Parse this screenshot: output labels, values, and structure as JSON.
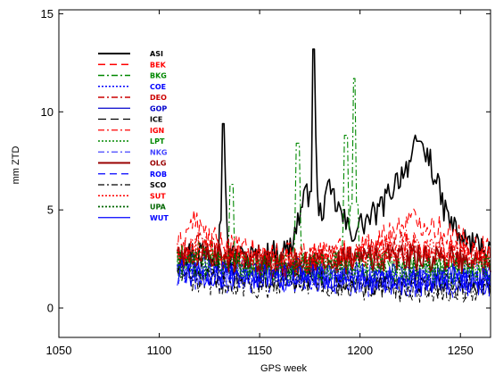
{
  "chart_data": {
    "type": "line",
    "xlabel": "GPS week",
    "ylabel": "mm ZTD",
    "xlim": [
      1050,
      1265
    ],
    "ylim": [
      -1.5,
      15.2
    ],
    "xticks": [
      1050,
      1100,
      1150,
      1200,
      1250
    ],
    "yticks": [
      0,
      5,
      10,
      15
    ],
    "legend_position": "top-left",
    "grid": false,
    "x_start": 1109,
    "x_end": 1265,
    "series": [
      {
        "name": "ASI",
        "color": "#000000",
        "dash": "",
        "width": 1.6,
        "anchors": [
          [
            1109,
            2.5
          ],
          [
            1120,
            3.0
          ],
          [
            1130,
            2.6
          ],
          [
            1132,
            9.4
          ],
          [
            1134,
            2.6
          ],
          [
            1150,
            2.6
          ],
          [
            1165,
            3.0
          ],
          [
            1172,
            5.5
          ],
          [
            1176,
            6.0
          ],
          [
            1177,
            13.2
          ],
          [
            1179,
            4.5
          ],
          [
            1185,
            6.0
          ],
          [
            1195,
            3.8
          ],
          [
            1210,
            5.0
          ],
          [
            1218,
            6.5
          ],
          [
            1225,
            7.5
          ],
          [
            1229,
            8.5
          ],
          [
            1235,
            7.5
          ],
          [
            1242,
            5.0
          ],
          [
            1250,
            3.5
          ],
          [
            1265,
            3.0
          ]
        ],
        "spikes": [
          [
            1132,
            9.4
          ],
          [
            1177,
            13.2
          ],
          [
            1229,
            8.5
          ]
        ]
      },
      {
        "name": "BEK",
        "color": "#ff0000",
        "dash": "8,5",
        "width": 1.1,
        "anchors": [
          [
            1109,
            3.0
          ],
          [
            1117,
            4.5
          ],
          [
            1125,
            3.5
          ],
          [
            1140,
            3.0
          ],
          [
            1160,
            2.6
          ],
          [
            1180,
            2.8
          ],
          [
            1200,
            3.0
          ],
          [
            1215,
            3.8
          ],
          [
            1225,
            4.5
          ],
          [
            1235,
            4.3
          ],
          [
            1250,
            3.5
          ],
          [
            1265,
            3.0
          ]
        ],
        "spikes": []
      },
      {
        "name": "BKG",
        "color": "#008800",
        "dash": "7,3,2,3",
        "width": 1.1,
        "anchors": [
          [
            1109,
            2.5
          ],
          [
            1125,
            2.8
          ],
          [
            1135,
            2.3
          ],
          [
            1150,
            2.0
          ],
          [
            1165,
            2.3
          ],
          [
            1180,
            2.0
          ],
          [
            1195,
            2.5
          ],
          [
            1210,
            2.3
          ],
          [
            1230,
            2.2
          ],
          [
            1250,
            2.2
          ],
          [
            1265,
            2.0
          ]
        ],
        "spikes": [
          [
            1136,
            6.3
          ],
          [
            1169,
            8.4
          ],
          [
            1193,
            8.8
          ],
          [
            1197,
            11.7
          ]
        ]
      },
      {
        "name": "COE",
        "color": "#0000ff",
        "dash": "2,2",
        "width": 1.1,
        "anchors": [
          [
            1109,
            2.0
          ],
          [
            1130,
            1.8
          ],
          [
            1150,
            1.6
          ],
          [
            1170,
            1.6
          ],
          [
            1190,
            1.7
          ],
          [
            1210,
            1.5
          ],
          [
            1230,
            1.4
          ],
          [
            1250,
            1.5
          ],
          [
            1265,
            1.6
          ]
        ],
        "spikes": []
      },
      {
        "name": "DEO",
        "color": "#cc0000",
        "dash": "7,3,2,3",
        "width": 1.1,
        "anchors": [
          [
            1109,
            2.6
          ],
          [
            1120,
            3.2
          ],
          [
            1140,
            2.5
          ],
          [
            1160,
            2.3
          ],
          [
            1180,
            2.5
          ],
          [
            1200,
            2.8
          ],
          [
            1220,
            3.2
          ],
          [
            1240,
            3.0
          ],
          [
            1265,
            2.6
          ]
        ],
        "spikes": []
      },
      {
        "name": "GOP",
        "color": "#0000cc",
        "dash": "",
        "width": 1.0,
        "anchors": [
          [
            1109,
            2.2
          ],
          [
            1130,
            2.0
          ],
          [
            1150,
            1.8
          ],
          [
            1170,
            1.9
          ],
          [
            1190,
            1.8
          ],
          [
            1210,
            1.6
          ],
          [
            1230,
            1.5
          ],
          [
            1250,
            1.6
          ],
          [
            1265,
            1.5
          ]
        ],
        "spikes": []
      },
      {
        "name": "ICE",
        "color": "#000000",
        "dash": "9,5",
        "width": 1.0,
        "anchors": [
          [
            1109,
            1.8
          ],
          [
            1130,
            1.6
          ],
          [
            1150,
            1.4
          ],
          [
            1170,
            1.6
          ],
          [
            1190,
            1.4
          ],
          [
            1210,
            1.2
          ],
          [
            1230,
            1.1
          ],
          [
            1250,
            1.2
          ],
          [
            1265,
            1.1
          ]
        ],
        "spikes": []
      },
      {
        "name": "IGN",
        "color": "#ff0000",
        "dash": "7,3,2,3",
        "width": 1.0,
        "anchors": [
          [
            1109,
            2.8
          ],
          [
            1125,
            3.2
          ],
          [
            1145,
            2.6
          ],
          [
            1165,
            2.4
          ],
          [
            1185,
            2.6
          ],
          [
            1205,
            3.0
          ],
          [
            1225,
            3.3
          ],
          [
            1245,
            3.0
          ],
          [
            1265,
            2.8
          ]
        ],
        "spikes": []
      },
      {
        "name": "LPT",
        "color": "#008800",
        "dash": "2,2",
        "width": 1.1,
        "anchors": [
          [
            1109,
            2.0
          ],
          [
            1130,
            2.2
          ],
          [
            1150,
            1.8
          ],
          [
            1170,
            2.0
          ],
          [
            1190,
            1.9
          ],
          [
            1210,
            1.8
          ],
          [
            1230,
            1.7
          ],
          [
            1250,
            1.8
          ],
          [
            1265,
            1.9
          ]
        ],
        "spikes": []
      },
      {
        "name": "NKG",
        "color": "#4444ff",
        "dash": "7,3,2,3",
        "width": 1.0,
        "anchors": [
          [
            1109,
            1.9
          ],
          [
            1130,
            1.8
          ],
          [
            1150,
            1.7
          ],
          [
            1170,
            1.7
          ],
          [
            1190,
            1.6
          ],
          [
            1210,
            1.5
          ],
          [
            1230,
            1.5
          ],
          [
            1250,
            1.4
          ],
          [
            1265,
            1.5
          ]
        ],
        "spikes": []
      },
      {
        "name": "OLG",
        "color": "#990000",
        "dash": "",
        "width": 1.8,
        "anchors": [
          [
            1109,
            2.5
          ],
          [
            1120,
            2.8
          ],
          [
            1140,
            2.3
          ],
          [
            1160,
            2.2
          ],
          [
            1180,
            2.3
          ],
          [
            1200,
            2.5
          ],
          [
            1220,
            2.6
          ],
          [
            1240,
            2.5
          ],
          [
            1265,
            2.3
          ]
        ],
        "spikes": []
      },
      {
        "name": "ROB",
        "color": "#0000ff",
        "dash": "8,5",
        "width": 1.0,
        "anchors": [
          [
            1109,
            1.7
          ],
          [
            1130,
            1.5
          ],
          [
            1150,
            1.3
          ],
          [
            1170,
            1.4
          ],
          [
            1190,
            1.3
          ],
          [
            1210,
            1.2
          ],
          [
            1230,
            1.1
          ],
          [
            1250,
            1.2
          ],
          [
            1265,
            1.2
          ]
        ],
        "spikes": []
      },
      {
        "name": "SCO",
        "color": "#000000",
        "dash": "7,3,2,3",
        "width": 1.0,
        "anchors": [
          [
            1109,
            1.5
          ],
          [
            1130,
            1.3
          ],
          [
            1150,
            1.2
          ],
          [
            1170,
            1.3
          ],
          [
            1190,
            1.2
          ],
          [
            1210,
            1.0
          ],
          [
            1230,
            0.9
          ],
          [
            1250,
            1.0
          ],
          [
            1265,
            1.0
          ]
        ],
        "spikes": []
      },
      {
        "name": "SUT",
        "color": "#ff0000",
        "dash": "2,2",
        "width": 1.1,
        "anchors": [
          [
            1109,
            2.7
          ],
          [
            1125,
            3.0
          ],
          [
            1145,
            2.4
          ],
          [
            1165,
            2.3
          ],
          [
            1185,
            2.4
          ],
          [
            1205,
            2.7
          ],
          [
            1225,
            3.0
          ],
          [
            1245,
            2.8
          ],
          [
            1265,
            2.6
          ]
        ],
        "spikes": []
      },
      {
        "name": "UPA",
        "color": "#006600",
        "dash": "2,2",
        "width": 1.4,
        "anchors": [
          [
            1109,
            2.2
          ],
          [
            1130,
            2.4
          ],
          [
            1150,
            2.0
          ],
          [
            1170,
            2.1
          ],
          [
            1190,
            2.2
          ],
          [
            1210,
            2.0
          ],
          [
            1230,
            1.9
          ],
          [
            1250,
            2.0
          ],
          [
            1265,
            2.1
          ]
        ],
        "spikes": []
      },
      {
        "name": "WUT",
        "color": "#0000ff",
        "dash": "",
        "width": 1.0,
        "anchors": [
          [
            1109,
            1.8
          ],
          [
            1130,
            1.7
          ],
          [
            1150,
            1.5
          ],
          [
            1170,
            1.6
          ],
          [
            1190,
            1.5
          ],
          [
            1210,
            1.4
          ],
          [
            1230,
            1.3
          ],
          [
            1250,
            1.4
          ],
          [
            1265,
            1.4
          ]
        ],
        "spikes": []
      }
    ]
  }
}
